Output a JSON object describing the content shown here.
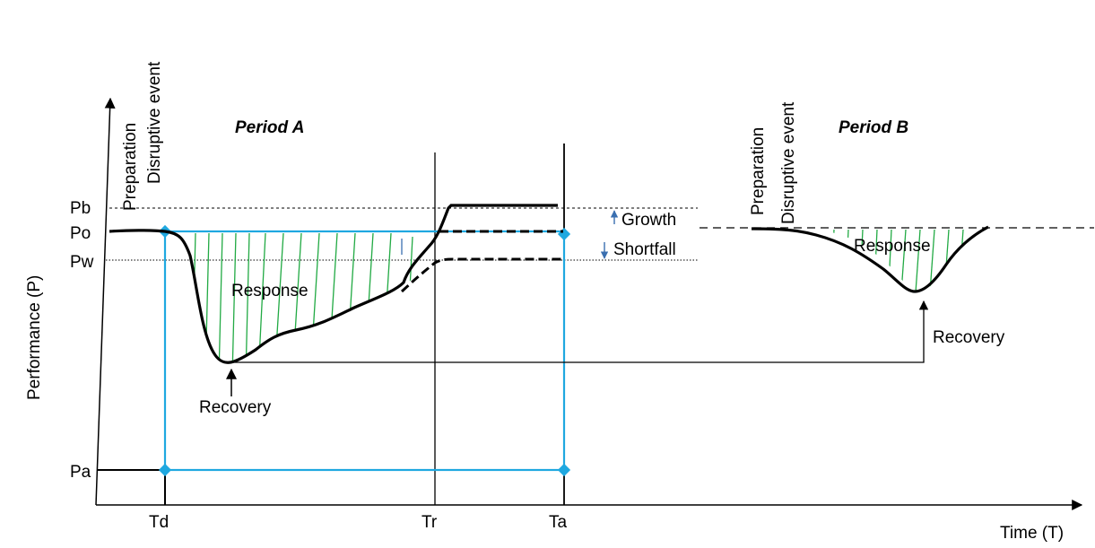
{
  "axes": {
    "y_label": "Performance (P)",
    "x_label": "Time (T)"
  },
  "levels": {
    "pb": "Pb",
    "po": "Po",
    "pw": "Pw",
    "pa": "Pa"
  },
  "time_marks": {
    "td": "Td",
    "tr": "Tr",
    "ta": "Ta"
  },
  "period_a": {
    "title": "Period A",
    "preparation": "Preparation",
    "disruptive_event": "Disruptive event",
    "response": "Response",
    "recovery": "Recovery"
  },
  "period_b": {
    "title": "Period B",
    "preparation": "Preparation",
    "disruptive_event": "Disruptive event",
    "response": "Response",
    "recovery": "Recovery"
  },
  "annotations": {
    "growth": "Growth",
    "shortfall": "Shortfall"
  },
  "colors": {
    "curve": "#000000",
    "blue_box": "#1fa8e0",
    "hatch": "#22aa44",
    "arrow_blue": "#3a6fb0"
  }
}
